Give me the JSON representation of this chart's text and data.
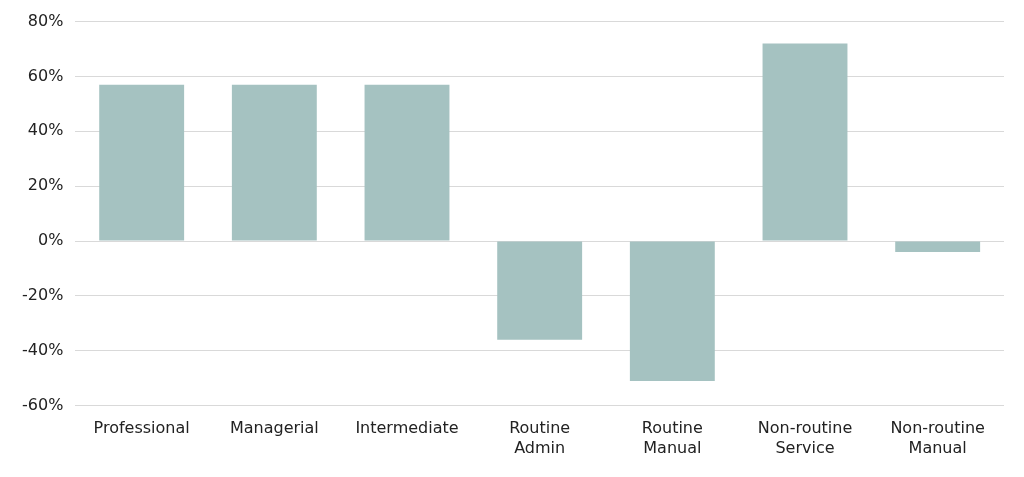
{
  "chart_data": {
    "type": "bar",
    "categories": [
      "Professional",
      "Managerial",
      "Intermediate",
      "Routine Admin",
      "Routine Manual",
      "Non-routine Service",
      "Non-routine Manual"
    ],
    "values": [
      57,
      57,
      57,
      -36,
      -51,
      72,
      -4
    ],
    "color": "#a5c2c1",
    "ylim": [
      -60,
      80
    ],
    "yticks": [
      {
        "value": -60,
        "label": "-60%"
      },
      {
        "value": -40,
        "label": "-40%"
      },
      {
        "value": -20,
        "label": "-20%"
      },
      {
        "value": 0,
        "label": "0%"
      },
      {
        "value": 20,
        "label": "20%"
      },
      {
        "value": 40,
        "label": "40%"
      },
      {
        "value": 60,
        "label": "60%"
      },
      {
        "value": 80,
        "label": "80%"
      }
    ],
    "grid": "y",
    "legend": false
  }
}
